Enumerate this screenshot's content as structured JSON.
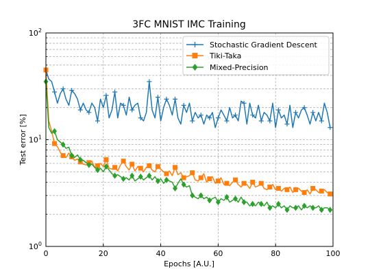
{
  "chart_data": {
    "type": "line",
    "title": "3FC MNIST IMC Training",
    "xlabel": "Epochs [A.U.]",
    "ylabel": "Test error [%]",
    "xlim": [
      0,
      100
    ],
    "ylim": [
      1,
      100
    ],
    "yscale": "log",
    "grid": true,
    "legend_position": "top-right",
    "x_ticks": [
      0,
      20,
      40,
      60,
      80,
      100
    ],
    "x_tick_labels": [
      "0",
      "20",
      "40",
      "60",
      "80",
      "100"
    ],
    "y_ticks": [
      1,
      10,
      100
    ],
    "y_tick_labels": [
      "10",
      "10",
      "10"
    ],
    "y_tick_exponents": [
      "0",
      "1",
      "2"
    ],
    "series": [
      {
        "name": "Stochastic Gradient Descent",
        "color": "#1f77b4",
        "marker": "plus",
        "x": [
          0,
          1,
          2,
          3,
          4,
          5,
          6,
          7,
          8,
          9,
          10,
          11,
          12,
          13,
          14,
          15,
          16,
          17,
          18,
          19,
          20,
          21,
          22,
          23,
          24,
          25,
          26,
          27,
          28,
          29,
          30,
          31,
          32,
          33,
          34,
          35,
          36,
          37,
          38,
          39,
          40,
          41,
          42,
          43,
          44,
          45,
          46,
          47,
          48,
          49,
          50,
          51,
          52,
          53,
          54,
          55,
          56,
          57,
          58,
          59,
          60,
          61,
          62,
          63,
          64,
          65,
          66,
          67,
          68,
          69,
          70,
          71,
          72,
          73,
          74,
          75,
          76,
          77,
          78,
          79,
          80,
          81,
          82,
          83,
          84,
          85,
          86,
          87,
          88,
          89,
          90,
          91,
          92,
          93,
          94,
          95,
          96,
          97,
          98,
          99
        ],
        "values": [
          45,
          37,
          35,
          28,
          22,
          27,
          30,
          24,
          21,
          29,
          27,
          24,
          19,
          22,
          19,
          18,
          22,
          20,
          15,
          24,
          20,
          26,
          16,
          19,
          28,
          16,
          22,
          21,
          17,
          25,
          19,
          21,
          22,
          16,
          15,
          18,
          35,
          19,
          16,
          25,
          15,
          20,
          24,
          21,
          17,
          24,
          16,
          14,
          21,
          18,
          22,
          15,
          18,
          16,
          17,
          14,
          17,
          16,
          18,
          13,
          16,
          19,
          17,
          15,
          20,
          16,
          17,
          15,
          23,
          22,
          14,
          22,
          17,
          16,
          21,
          15,
          18,
          17,
          15,
          22,
          13,
          19,
          16,
          17,
          14,
          21,
          13,
          18,
          16,
          19,
          20,
          17,
          14,
          18,
          15,
          18,
          15,
          22,
          18,
          13
        ]
      },
      {
        "name": "Tiki-Taka",
        "color": "#ff7f0e",
        "marker": "square",
        "x": [
          0,
          1,
          2,
          3,
          4,
          5,
          6,
          7,
          8,
          9,
          10,
          11,
          12,
          13,
          14,
          15,
          16,
          17,
          18,
          19,
          20,
          21,
          22,
          23,
          24,
          25,
          26,
          27,
          28,
          29,
          30,
          31,
          32,
          33,
          34,
          35,
          36,
          37,
          38,
          39,
          40,
          41,
          42,
          43,
          44,
          45,
          46,
          47,
          48,
          49,
          50,
          51,
          52,
          53,
          54,
          55,
          56,
          57,
          58,
          59,
          60,
          61,
          62,
          63,
          64,
          65,
          66,
          67,
          68,
          69,
          70,
          71,
          72,
          73,
          74,
          75,
          76,
          77,
          78,
          79,
          80,
          81,
          82,
          83,
          84,
          85,
          86,
          87,
          88,
          89,
          90,
          91,
          92,
          93,
          94,
          95,
          96,
          97,
          98,
          99
        ],
        "values": [
          45,
          15,
          12,
          9.2,
          8.6,
          7.6,
          7.1,
          6.8,
          7.5,
          6.9,
          6.4,
          6.6,
          6.2,
          5.9,
          5.8,
          6.1,
          6.3,
          5.5,
          5.7,
          6.0,
          5.6,
          6.5,
          5.4,
          5.3,
          5.5,
          5.1,
          5.8,
          6.3,
          5.6,
          5.2,
          5.9,
          5.1,
          5.6,
          5.4,
          5.0,
          5.5,
          5.7,
          5.2,
          5.0,
          5.6,
          5.3,
          5.0,
          4.8,
          5.1,
          4.6,
          5.5,
          4.7,
          4.9,
          4.4,
          4.5,
          4.6,
          4.9,
          4.2,
          4.1,
          4.4,
          4.8,
          4.0,
          4.3,
          4.5,
          3.9,
          4.1,
          4.4,
          3.8,
          3.9,
          3.7,
          4.0,
          4.2,
          3.8,
          3.6,
          3.9,
          3.8,
          3.5,
          4.0,
          3.6,
          3.7,
          3.9,
          3.5,
          3.4,
          3.6,
          3.8,
          3.4,
          3.5,
          3.3,
          3.5,
          3.4,
          3.6,
          3.2,
          3.4,
          3.5,
          3.3,
          3.2,
          3.4,
          3.1,
          3.5,
          3.4,
          3.2,
          3.3,
          3.4,
          3.2,
          3.1
        ]
      },
      {
        "name": "Mixed-Precision",
        "color": "#2ca02c",
        "marker": "diamond",
        "x": [
          0,
          1,
          2,
          3,
          4,
          5,
          6,
          7,
          8,
          9,
          10,
          11,
          12,
          13,
          14,
          15,
          16,
          17,
          18,
          19,
          20,
          21,
          22,
          23,
          24,
          25,
          26,
          27,
          28,
          29,
          30,
          31,
          32,
          33,
          34,
          35,
          36,
          37,
          38,
          39,
          40,
          41,
          42,
          43,
          44,
          45,
          46,
          47,
          48,
          49,
          50,
          51,
          52,
          53,
          54,
          55,
          56,
          57,
          58,
          59,
          60,
          61,
          62,
          63,
          64,
          65,
          66,
          67,
          68,
          69,
          70,
          71,
          72,
          73,
          74,
          75,
          76,
          77,
          78,
          79,
          80,
          81,
          82,
          83,
          84,
          85,
          86,
          87,
          88,
          89,
          90,
          91,
          92,
          93,
          94,
          95,
          96,
          97,
          98,
          99
        ],
        "values": [
          35,
          13,
          11.5,
          12,
          10,
          9.5,
          9,
          8.3,
          8.5,
          7.1,
          6.8,
          7.2,
          6.5,
          6.4,
          6.1,
          5.8,
          5.9,
          5.5,
          5.2,
          5.4,
          5.0,
          5.6,
          5.2,
          4.8,
          4.6,
          4.7,
          4.5,
          4.3,
          4.4,
          4.2,
          4.6,
          4.1,
          4.3,
          4.5,
          4.2,
          4.4,
          4.6,
          4.2,
          4.5,
          4.1,
          4.3,
          3.9,
          4.2,
          4.1,
          4.0,
          3.5,
          3.9,
          4.3,
          3.8,
          3.6,
          3.7,
          3.0,
          2.9,
          2.8,
          3.0,
          2.8,
          2.9,
          2.7,
          2.8,
          2.9,
          2.6,
          2.8,
          2.7,
          2.9,
          2.6,
          2.7,
          2.8,
          2.6,
          2.9,
          2.6,
          2.6,
          2.4,
          2.5,
          2.4,
          2.6,
          2.5,
          2.4,
          2.6,
          2.3,
          2.4,
          2.3,
          2.5,
          2.3,
          2.4,
          2.2,
          2.4,
          2.3,
          2.3,
          2.4,
          2.2,
          2.4,
          2.3,
          2.4,
          2.3,
          2.3,
          2.4,
          2.2,
          2.3,
          2.3,
          2.2
        ]
      }
    ]
  }
}
